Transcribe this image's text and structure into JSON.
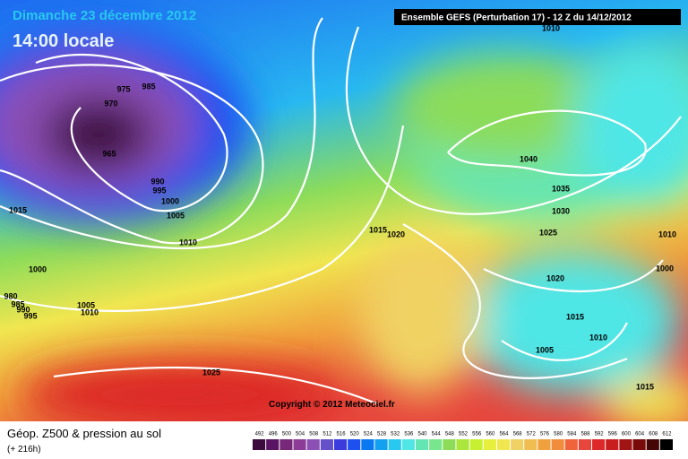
{
  "header": {
    "date": "Dimanche 23 décembre 2012",
    "time": "14:00 locale",
    "model": "Ensemble GEFS (Perturbation 17)  -  12 Z du 14/12/2012",
    "copyright": "Copyright © 2012 Meteociel.fr"
  },
  "footer": {
    "title": "Géop. Z500 & pression au sol",
    "lead": "(+ 216h)"
  },
  "scale": {
    "labels": [
      "492",
      "496",
      "500",
      "504",
      "508",
      "512",
      "516",
      "520",
      "524",
      "528",
      "532",
      "536",
      "540",
      "544",
      "548",
      "552",
      "556",
      "560",
      "564",
      "568",
      "572",
      "576",
      "580",
      "584",
      "588",
      "592",
      "596",
      "600",
      "604",
      "608",
      "612"
    ],
    "colors": [
      "#3c0a3c",
      "#5a1464",
      "#782878",
      "#8c3c96",
      "#8c50b4",
      "#6450c8",
      "#3c3cdc",
      "#1e50f0",
      "#0a78f0",
      "#14a0f0",
      "#28c8f0",
      "#50e6e6",
      "#64e6b4",
      "#78e68c",
      "#8cdc5a",
      "#aae63c",
      "#c8f032",
      "#e6f03c",
      "#f0e650",
      "#f0d264",
      "#f0be50",
      "#f0a03c",
      "#f08c3c",
      "#f0643c",
      "#e6463c",
      "#dc2828",
      "#c81e1e",
      "#a01414",
      "#780a0a",
      "#460505",
      "#000000"
    ]
  },
  "isobars": [
    "1010",
    "975",
    "985",
    "970",
    "965",
    "990",
    "995",
    "1000",
    "1005",
    "1010",
    "1015",
    "1000",
    "980",
    "985",
    "990",
    "995",
    "1005",
    "1010",
    "1025",
    "1015",
    "1020",
    "1040",
    "1035",
    "1030",
    "1025",
    "1020",
    "1015",
    "1010",
    "1005",
    "1015",
    "1010",
    "1000"
  ]
}
